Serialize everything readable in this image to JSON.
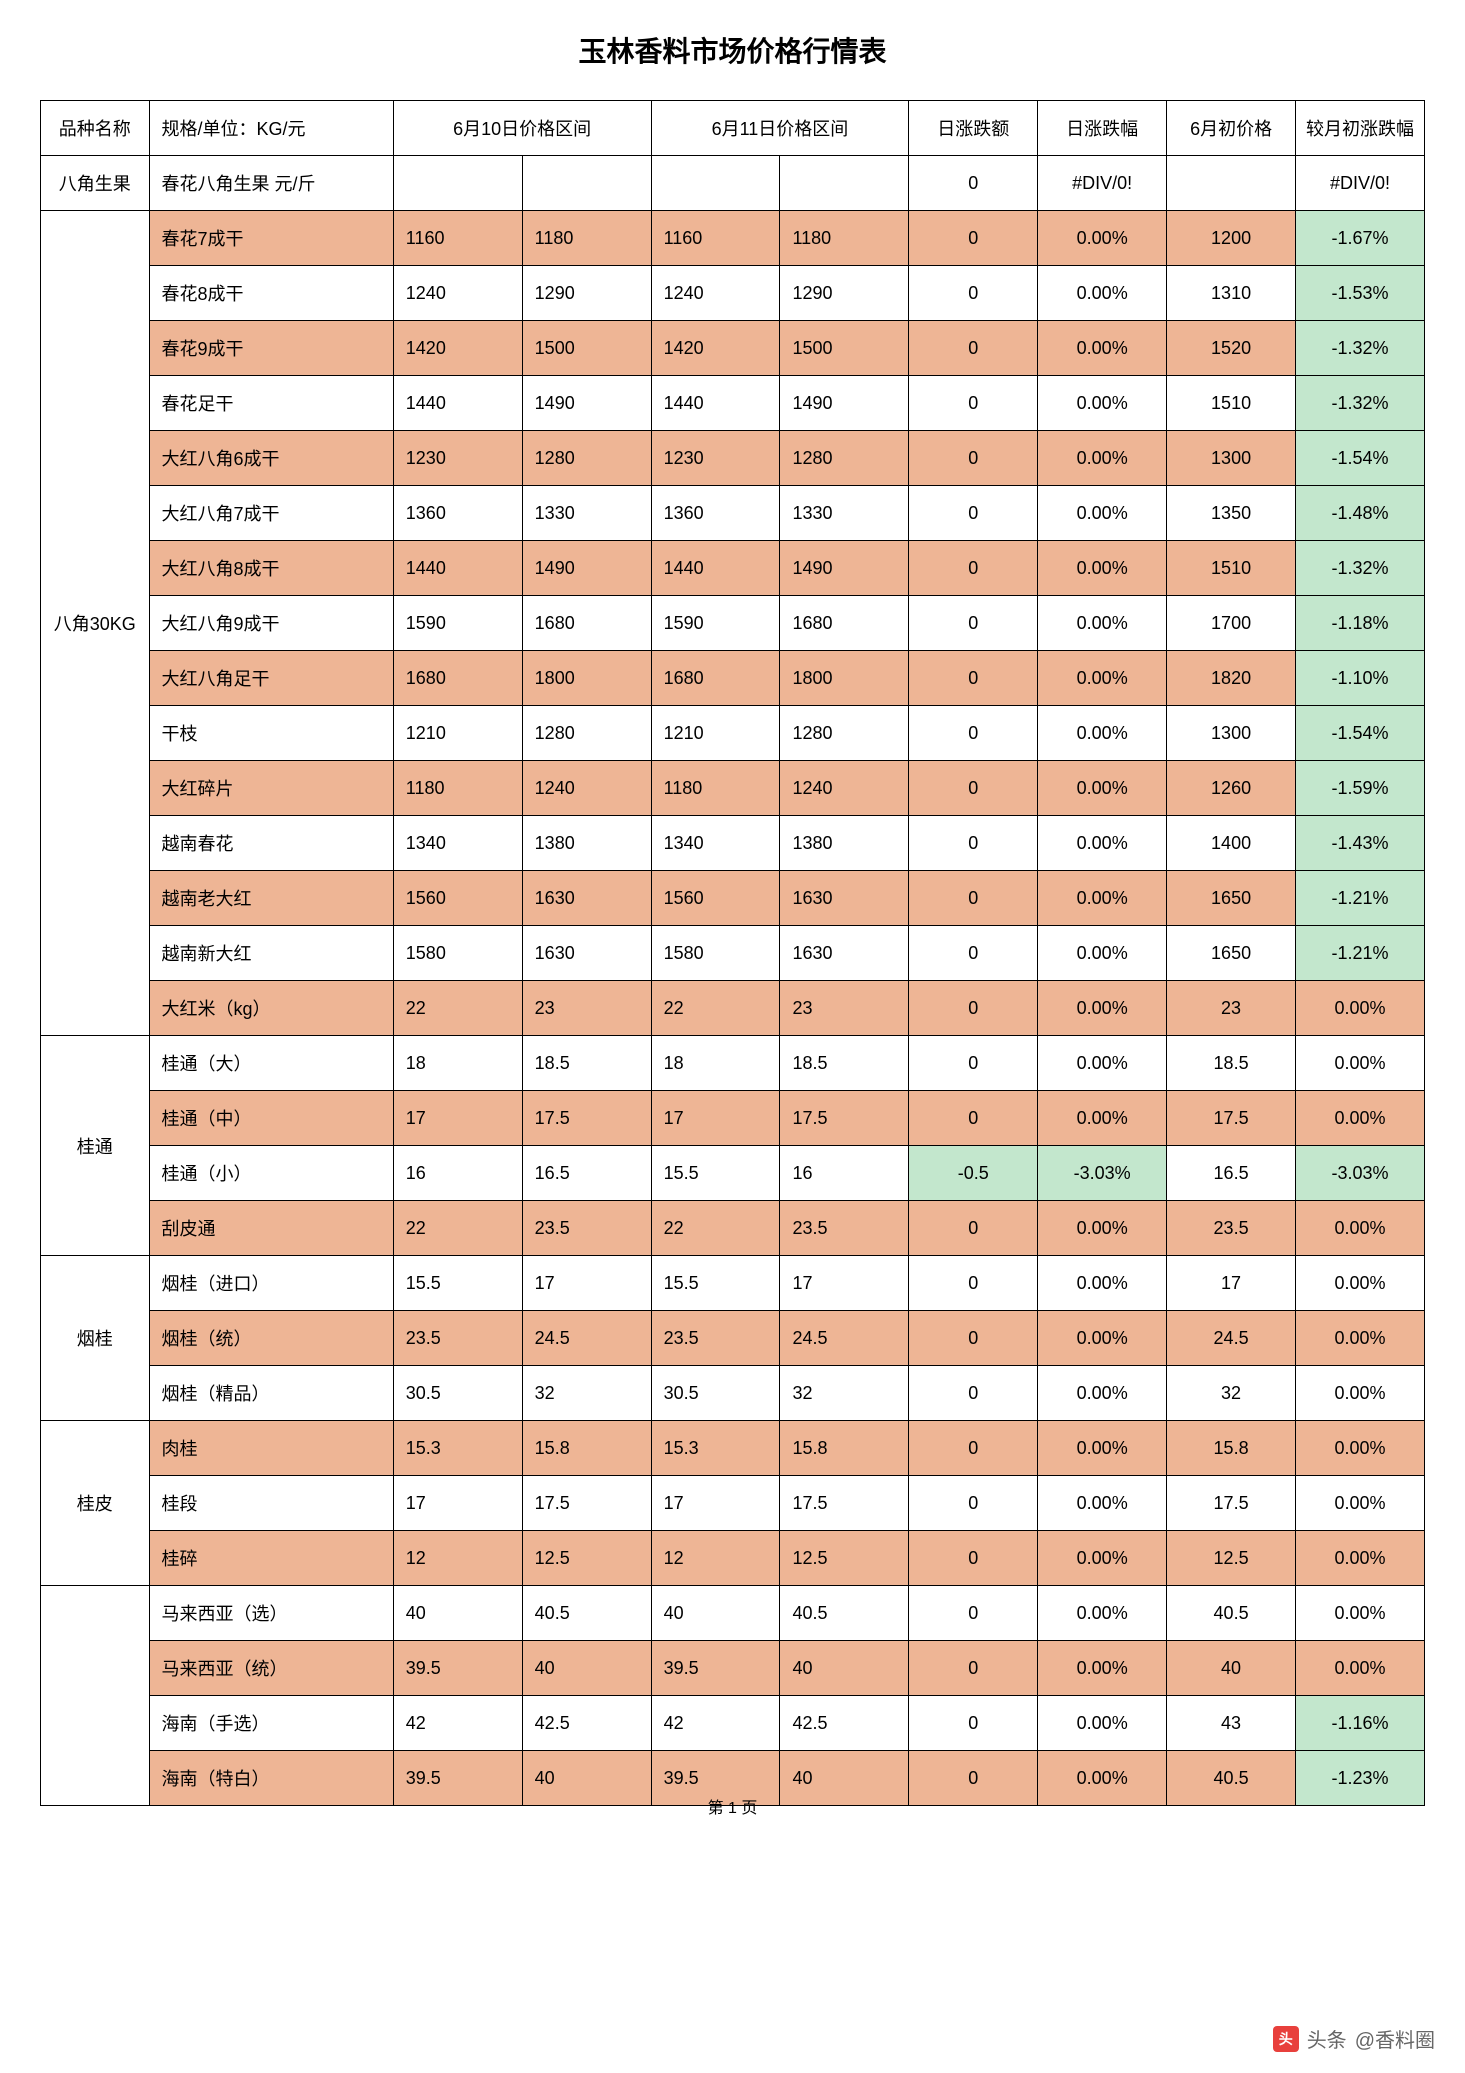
{
  "title": "玉林香料市场价格行情表",
  "page_footer": "第 1 页",
  "watermark": {
    "prefix": "头条",
    "account": "@香料圈"
  },
  "colors": {
    "row_alt": "#eeb595",
    "green_cell": "#c3e7cd",
    "border": "#000000",
    "bg": "#ffffff"
  },
  "header": {
    "c0": "品种名称",
    "c1": "规格/单位：KG/元",
    "c2": "6月10日价格区间",
    "c3": "6月11日价格区间",
    "c4": "日涨跌额",
    "c5": "日涨跌幅",
    "c6": "6月初价格",
    "c7": "较月初涨跌幅"
  },
  "groups": [
    {
      "category": "八角生果",
      "rows": [
        {
          "spec": "春花八角生果 元/斤",
          "p10a": "",
          "p10b": "",
          "p11a": "",
          "p11b": "",
          "diff": "0",
          "pct": "#DIV/0!",
          "start": "",
          "mpct": "#DIV/0!",
          "alt": false,
          "green_diff": false,
          "green_mpct": false
        }
      ]
    },
    {
      "category": "八角30KG",
      "rows": [
        {
          "spec": "春花7成干",
          "p10a": "1160",
          "p10b": "1180",
          "p11a": "1160",
          "p11b": "1180",
          "diff": "0",
          "pct": "0.00%",
          "start": "1200",
          "mpct": "-1.67%",
          "alt": true,
          "green_diff": false,
          "green_mpct": true
        },
        {
          "spec": "春花8成干",
          "p10a": "1240",
          "p10b": "1290",
          "p11a": "1240",
          "p11b": "1290",
          "diff": "0",
          "pct": "0.00%",
          "start": "1310",
          "mpct": "-1.53%",
          "alt": false,
          "green_diff": false,
          "green_mpct": true
        },
        {
          "spec": "春花9成干",
          "p10a": "1420",
          "p10b": "1500",
          "p11a": "1420",
          "p11b": "1500",
          "diff": "0",
          "pct": "0.00%",
          "start": "1520",
          "mpct": "-1.32%",
          "alt": true,
          "green_diff": false,
          "green_mpct": true
        },
        {
          "spec": "春花足干",
          "p10a": "1440",
          "p10b": "1490",
          "p11a": "1440",
          "p11b": "1490",
          "diff": "0",
          "pct": "0.00%",
          "start": "1510",
          "mpct": "-1.32%",
          "alt": false,
          "green_diff": false,
          "green_mpct": true
        },
        {
          "spec": "大红八角6成干",
          "p10a": "1230",
          "p10b": "1280",
          "p11a": "1230",
          "p11b": "1280",
          "diff": "0",
          "pct": "0.00%",
          "start": "1300",
          "mpct": "-1.54%",
          "alt": true,
          "green_diff": false,
          "green_mpct": true
        },
        {
          "spec": "大红八角7成干",
          "p10a": "1360",
          "p10b": "1330",
          "p11a": "1360",
          "p11b": "1330",
          "diff": "0",
          "pct": "0.00%",
          "start": "1350",
          "mpct": "-1.48%",
          "alt": false,
          "green_diff": false,
          "green_mpct": true
        },
        {
          "spec": "大红八角8成干",
          "p10a": "1440",
          "p10b": "1490",
          "p11a": "1440",
          "p11b": "1490",
          "diff": "0",
          "pct": "0.00%",
          "start": "1510",
          "mpct": "-1.32%",
          "alt": true,
          "green_diff": false,
          "green_mpct": true
        },
        {
          "spec": "大红八角9成干",
          "p10a": "1590",
          "p10b": "1680",
          "p11a": "1590",
          "p11b": "1680",
          "diff": "0",
          "pct": "0.00%",
          "start": "1700",
          "mpct": "-1.18%",
          "alt": false,
          "green_diff": false,
          "green_mpct": true
        },
        {
          "spec": "大红八角足干",
          "p10a": "1680",
          "p10b": "1800",
          "p11a": "1680",
          "p11b": "1800",
          "diff": "0",
          "pct": "0.00%",
          "start": "1820",
          "mpct": "-1.10%",
          "alt": true,
          "green_diff": false,
          "green_mpct": true
        },
        {
          "spec": "干枝",
          "p10a": "1210",
          "p10b": "1280",
          "p11a": "1210",
          "p11b": "1280",
          "diff": "0",
          "pct": "0.00%",
          "start": "1300",
          "mpct": "-1.54%",
          "alt": false,
          "green_diff": false,
          "green_mpct": true
        },
        {
          "spec": "大红碎片",
          "p10a": "1180",
          "p10b": "1240",
          "p11a": "1180",
          "p11b": "1240",
          "diff": "0",
          "pct": "0.00%",
          "start": "1260",
          "mpct": "-1.59%",
          "alt": true,
          "green_diff": false,
          "green_mpct": true
        },
        {
          "spec": "越南春花",
          "p10a": "1340",
          "p10b": "1380",
          "p11a": "1340",
          "p11b": "1380",
          "diff": "0",
          "pct": "0.00%",
          "start": "1400",
          "mpct": "-1.43%",
          "alt": false,
          "green_diff": false,
          "green_mpct": true
        },
        {
          "spec": "越南老大红",
          "p10a": "1560",
          "p10b": "1630",
          "p11a": "1560",
          "p11b": "1630",
          "diff": "0",
          "pct": "0.00%",
          "start": "1650",
          "mpct": "-1.21%",
          "alt": true,
          "green_diff": false,
          "green_mpct": true
        },
        {
          "spec": "越南新大红",
          "p10a": "1580",
          "p10b": "1630",
          "p11a": "1580",
          "p11b": "1630",
          "diff": "0",
          "pct": "0.00%",
          "start": "1650",
          "mpct": "-1.21%",
          "alt": false,
          "green_diff": false,
          "green_mpct": true
        },
        {
          "spec": "大红米（kg）",
          "p10a": "22",
          "p10b": "23",
          "p11a": "22",
          "p11b": "23",
          "diff": "0",
          "pct": "0.00%",
          "start": "23",
          "mpct": "0.00%",
          "alt": true,
          "green_diff": false,
          "green_mpct": false
        }
      ]
    },
    {
      "category": "桂通",
      "rows": [
        {
          "spec": "桂通（大）",
          "p10a": "18",
          "p10b": "18.5",
          "p11a": "18",
          "p11b": "18.5",
          "diff": "0",
          "pct": "0.00%",
          "start": "18.5",
          "mpct": "0.00%",
          "alt": false,
          "green_diff": false,
          "green_mpct": false
        },
        {
          "spec": "桂通（中）",
          "p10a": "17",
          "p10b": "17.5",
          "p11a": "17",
          "p11b": "17.5",
          "diff": "0",
          "pct": "0.00%",
          "start": "17.5",
          "mpct": "0.00%",
          "alt": true,
          "green_diff": false,
          "green_mpct": false
        },
        {
          "spec": "桂通（小）",
          "p10a": "16",
          "p10b": "16.5",
          "p11a": "15.5",
          "p11b": "16",
          "diff": "-0.5",
          "pct": "-3.03%",
          "start": "16.5",
          "mpct": "-3.03%",
          "alt": false,
          "green_diff": true,
          "green_mpct": true
        },
        {
          "spec": "刮皮通",
          "p10a": "22",
          "p10b": "23.5",
          "p11a": "22",
          "p11b": "23.5",
          "diff": "0",
          "pct": "0.00%",
          "start": "23.5",
          "mpct": "0.00%",
          "alt": true,
          "green_diff": false,
          "green_mpct": false
        }
      ]
    },
    {
      "category": "烟桂",
      "rows": [
        {
          "spec": "烟桂（进口）",
          "p10a": "15.5",
          "p10b": "17",
          "p11a": "15.5",
          "p11b": "17",
          "diff": "0",
          "pct": "0.00%",
          "start": "17",
          "mpct": "0.00%",
          "alt": false,
          "green_diff": false,
          "green_mpct": false
        },
        {
          "spec": "烟桂（统）",
          "p10a": "23.5",
          "p10b": "24.5",
          "p11a": "23.5",
          "p11b": "24.5",
          "diff": "0",
          "pct": "0.00%",
          "start": "24.5",
          "mpct": "0.00%",
          "alt": true,
          "green_diff": false,
          "green_mpct": false
        },
        {
          "spec": "烟桂（精品）",
          "p10a": "30.5",
          "p10b": "32",
          "p11a": "30.5",
          "p11b": "32",
          "diff": "0",
          "pct": "0.00%",
          "start": "32",
          "mpct": "0.00%",
          "alt": false,
          "green_diff": false,
          "green_mpct": false
        }
      ]
    },
    {
      "category": "桂皮",
      "rows": [
        {
          "spec": "肉桂",
          "p10a": "15.3",
          "p10b": "15.8",
          "p11a": "15.3",
          "p11b": "15.8",
          "diff": "0",
          "pct": "0.00%",
          "start": "15.8",
          "mpct": "0.00%",
          "alt": true,
          "green_diff": false,
          "green_mpct": false
        },
        {
          "spec": "桂段",
          "p10a": "17",
          "p10b": "17.5",
          "p11a": "17",
          "p11b": "17.5",
          "diff": "0",
          "pct": "0.00%",
          "start": "17.5",
          "mpct": "0.00%",
          "alt": false,
          "green_diff": false,
          "green_mpct": false
        },
        {
          "spec": "桂碎",
          "p10a": "12",
          "p10b": "12.5",
          "p11a": "12",
          "p11b": "12.5",
          "diff": "0",
          "pct": "0.00%",
          "start": "12.5",
          "mpct": "0.00%",
          "alt": true,
          "green_diff": false,
          "green_mpct": false
        }
      ]
    },
    {
      "category": "",
      "rows": [
        {
          "spec": "马来西亚（选）",
          "p10a": "40",
          "p10b": "40.5",
          "p11a": "40",
          "p11b": "40.5",
          "diff": "0",
          "pct": "0.00%",
          "start": "40.5",
          "mpct": "0.00%",
          "alt": false,
          "green_diff": false,
          "green_mpct": false
        },
        {
          "spec": "马来西亚（统）",
          "p10a": "39.5",
          "p10b": "40",
          "p11a": "39.5",
          "p11b": "40",
          "diff": "0",
          "pct": "0.00%",
          "start": "40",
          "mpct": "0.00%",
          "alt": true,
          "green_diff": false,
          "green_mpct": false
        },
        {
          "spec": "海南（手选）",
          "p10a": "42",
          "p10b": "42.5",
          "p11a": "42",
          "p11b": "42.5",
          "diff": "0",
          "pct": "0.00%",
          "start": "43",
          "mpct": "-1.16%",
          "alt": false,
          "green_diff": false,
          "green_mpct": true
        },
        {
          "spec": "海南（特白）",
          "p10a": "39.5",
          "p10b": "40",
          "p11a": "39.5",
          "p11b": "40",
          "diff": "0",
          "pct": "0.00%",
          "start": "40.5",
          "mpct": "-1.23%",
          "alt": true,
          "green_diff": false,
          "green_mpct": true
        }
      ]
    }
  ]
}
